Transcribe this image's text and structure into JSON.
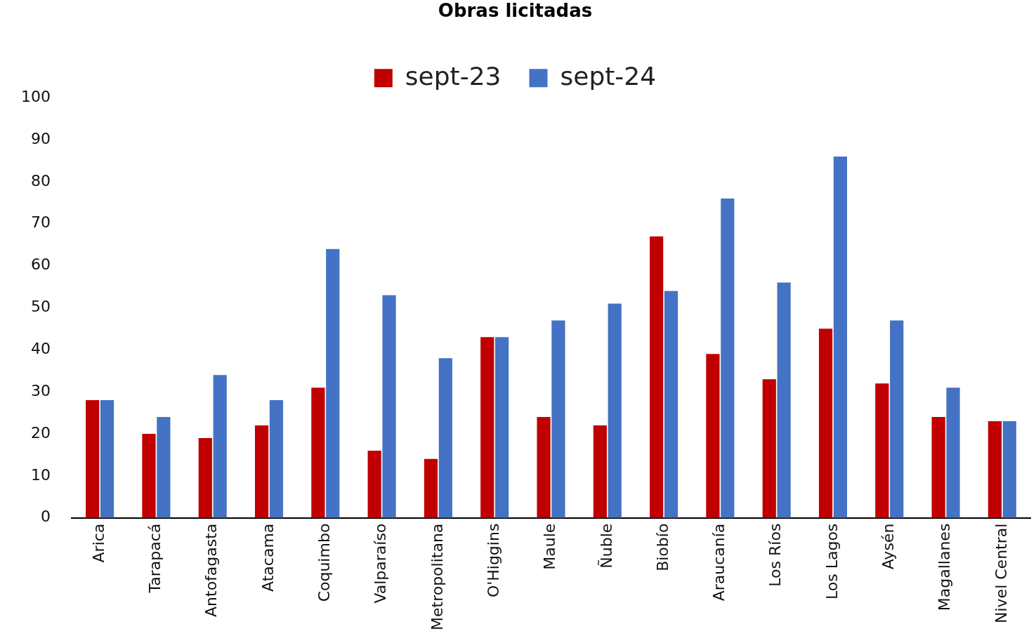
{
  "chart_data": {
    "type": "bar",
    "title": "Obras licitadas",
    "categories": [
      "Arica",
      "Tarapacá",
      "Antofagasta",
      "Atacama",
      "Coquimbo",
      "Valparaíso",
      "Metropolitana",
      "O'Higgins",
      "Maule",
      "Ñuble",
      "Biobío",
      "Araucanía",
      "Los Ríos",
      "Los Lagos",
      "Aysén",
      "Magallanes",
      "Nivel Central"
    ],
    "series": [
      {
        "name": "sept-23",
        "color": "#c00000",
        "values": [
          28,
          20,
          19,
          22,
          31,
          16,
          14,
          43,
          24,
          22,
          67,
          39,
          33,
          45,
          32,
          24,
          23
        ]
      },
      {
        "name": "sept-24",
        "color": "#4472c4",
        "values": [
          28,
          24,
          34,
          28,
          64,
          53,
          38,
          43,
          47,
          51,
          54,
          76,
          56,
          86,
          47,
          31,
          23
        ]
      }
    ],
    "ylim": [
      0,
      100
    ],
    "yticks": [
      0,
      10,
      20,
      30,
      40,
      50,
      60,
      70,
      80,
      90,
      100
    ],
    "grid": false,
    "legend": "top"
  }
}
